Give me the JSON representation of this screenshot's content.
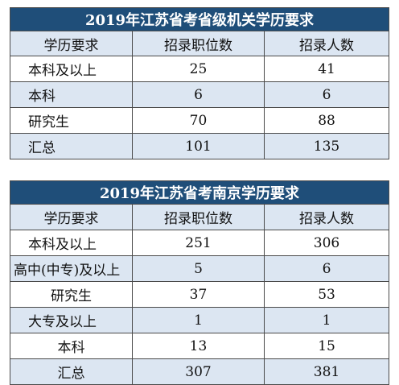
{
  "table_a": {
    "title": "2019年江苏省考省级机关学历要求",
    "headers": [
      "学历要求",
      "招录职位数",
      "招录人数"
    ],
    "rows": [
      [
        "本科及以上",
        "25",
        "41"
      ],
      [
        "本科",
        "6",
        "6"
      ],
      [
        "研究生",
        "70",
        "88"
      ],
      [
        "汇总",
        "101",
        "135"
      ]
    ]
  },
  "table_b": {
    "title": "2019年江苏省考南京学历要求",
    "headers": [
      "学历要求",
      "招录职位数",
      "招录人数"
    ],
    "rows": [
      [
        "本科及以上",
        "251",
        "306"
      ],
      [
        "高中(中专)及以上",
        "5",
        "6"
      ],
      [
        "研究生",
        "37",
        "53"
      ],
      [
        "大专及以上",
        "1",
        "1"
      ],
      [
        "本科",
        "13",
        "15"
      ],
      [
        "汇总",
        "307",
        "381"
      ]
    ]
  },
  "colors": {
    "title_background": "#1f4e79",
    "title_text": "#ffffff",
    "shaded_row": "#dce6f2",
    "border": "#4a4a4a"
  }
}
